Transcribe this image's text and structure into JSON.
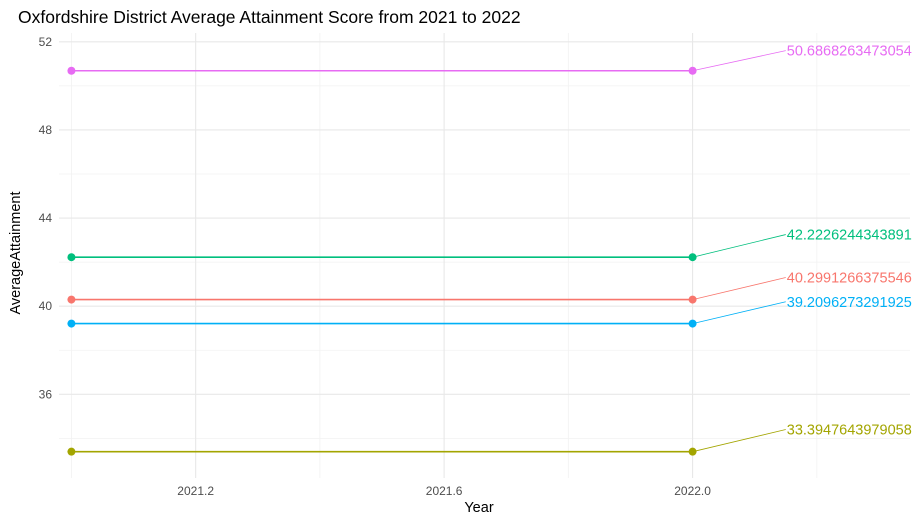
{
  "chart_data": {
    "type": "line",
    "title": "Oxfordshire District Average Attainment Score from 2021 to 2022",
    "xlabel": "Year",
    "ylabel": "AverageAttainment",
    "x": [
      2021,
      2022
    ],
    "xlim": [
      2020.98,
      2022.35
    ],
    "ylim": [
      32.2,
      52.4
    ],
    "x_ticks": [
      "2021.2",
      "2021.6",
      "2022.0"
    ],
    "x_tick_values": [
      2021.2,
      2021.6,
      2022.0
    ],
    "y_ticks": [
      "36",
      "40",
      "44",
      "48",
      "52"
    ],
    "y_tick_values": [
      36,
      40,
      44,
      48,
      52
    ],
    "grid": true,
    "legend": "none",
    "series": [
      {
        "values": [
          50.6868263473054,
          50.6868263473054
        ],
        "color": "#e76bf3",
        "label": "50.6868263473054",
        "label_at": [
          2022.15,
          51.6
        ]
      },
      {
        "values": [
          42.2226244343891,
          42.2226244343891
        ],
        "color": "#00bf7d",
        "label": "42.2226244343891",
        "label_at": [
          2022.15,
          43.25
        ]
      },
      {
        "values": [
          40.2991266375546,
          40.2991266375546
        ],
        "color": "#f8766d",
        "label": "40.2991266375546",
        "label_at": [
          2022.15,
          41.3
        ]
      },
      {
        "values": [
          39.2096273291925,
          39.2096273291925
        ],
        "color": "#00b0f6",
        "label": "39.2096273291925",
        "label_at": [
          2022.15,
          40.2
        ]
      },
      {
        "values": [
          33.3947643979058,
          33.3947643979058
        ],
        "color": "#a3a500",
        "label": "33.3947643979058",
        "label_at": [
          2022.15,
          34.4
        ]
      }
    ]
  }
}
